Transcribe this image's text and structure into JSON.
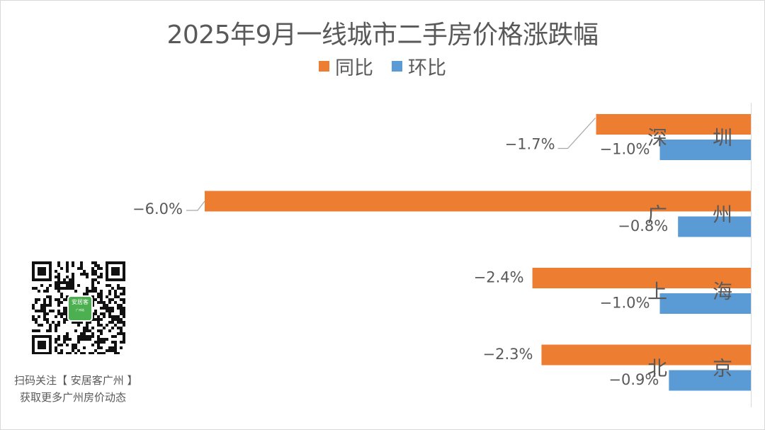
{
  "title": "2025年9月一线城市二手房价格涨跌幅",
  "colors": {
    "yoy": "#ed7d31",
    "mom": "#5b9bd5",
    "text": "#595959"
  },
  "legend": [
    {
      "label": "同比",
      "color": "#ed7d31"
    },
    {
      "label": "环比",
      "color": "#5b9bd5"
    }
  ],
  "chart_data": {
    "type": "bar",
    "orientation": "horizontal",
    "categories": [
      "深　圳",
      "广　州",
      "上　海",
      "北　京"
    ],
    "series": [
      {
        "name": "同比",
        "values": [
          -1.7,
          -6.0,
          -2.4,
          -2.3
        ],
        "labels": [
          "−1.7%",
          "−6.0%",
          "−2.4%",
          "−2.3%"
        ]
      },
      {
        "name": "环比",
        "values": [
          -1.0,
          -0.8,
          -1.0,
          -0.9
        ],
        "labels": [
          "−1.0%",
          "−0.8%",
          "−1.0%",
          "−0.9%"
        ]
      }
    ],
    "xlim": [
      -6.0,
      0
    ],
    "grid": false,
    "legend_position": "top"
  },
  "promo": {
    "line1": "扫码关注【 安居客广州 】",
    "line2": "获取更多广州房价动态",
    "badge_title": "安居客",
    "badge_sub": "广州站"
  }
}
